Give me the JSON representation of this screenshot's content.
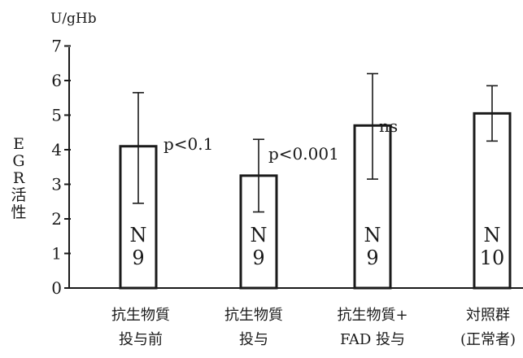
{
  "chart_data": {
    "type": "bar",
    "unit_label": "U/gHb",
    "ylabel": [
      "E",
      "G",
      "R",
      "活",
      "性"
    ],
    "ylim": [
      0,
      7
    ],
    "yticks": [
      "0",
      "1",
      "2",
      "3",
      "4",
      "5",
      "6",
      "7"
    ],
    "categories": [
      [
        "抗生物質",
        "投与前"
      ],
      [
        "抗生物質",
        "投与"
      ],
      [
        "抗生物質+",
        "FAD 投与"
      ],
      [
        "対照群",
        "(正常者)"
      ]
    ],
    "values": [
      4.1,
      3.25,
      4.7,
      5.05
    ],
    "error_low": [
      2.45,
      2.2,
      3.15,
      4.25
    ],
    "error_high": [
      5.65,
      4.3,
      6.2,
      5.85
    ],
    "n_labels": [
      [
        "N",
        "9"
      ],
      [
        "N",
        "9"
      ],
      [
        "N",
        "9"
      ],
      [
        "N",
        "10"
      ]
    ],
    "annotations": [
      "p<0.1",
      "p<0.001",
      "ns",
      ""
    ],
    "grid": false,
    "legend": "none"
  }
}
